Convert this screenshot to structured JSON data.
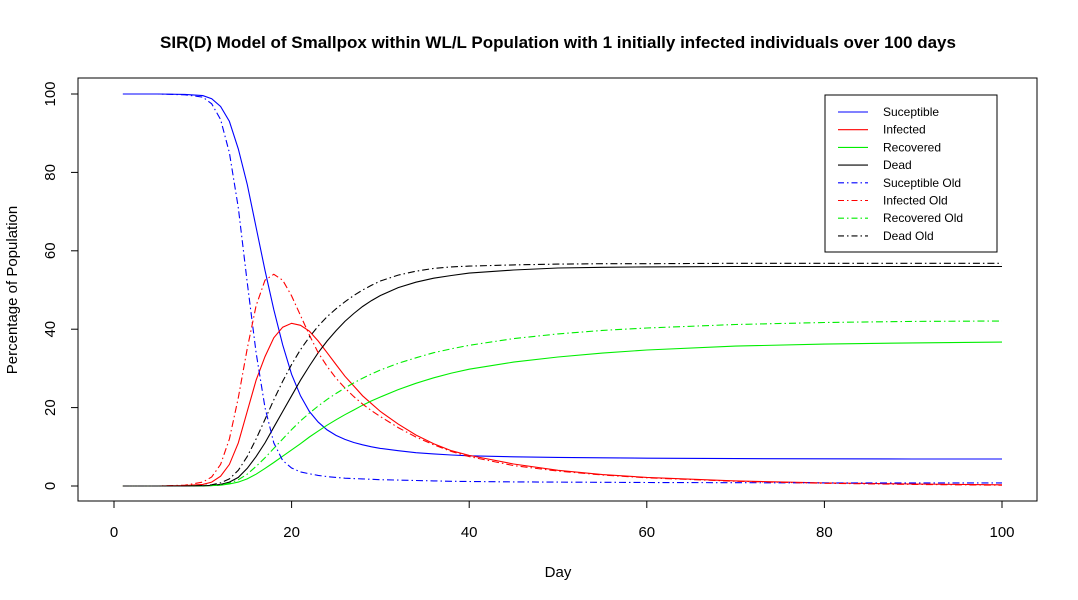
{
  "chart_data": {
    "type": "line",
    "title": "SIR(D) Model of Smallpox within WL/L Population with 1 initially infected individuals over 100 days",
    "xlabel": "Day",
    "ylabel": "Percentage of Population",
    "xlim": [
      1,
      100
    ],
    "ylim": [
      0,
      100
    ],
    "xticks": [
      0,
      20,
      40,
      60,
      80,
      100
    ],
    "yticks": [
      0,
      20,
      40,
      60,
      80,
      100
    ],
    "grid": false,
    "legend_position": "top-right",
    "x": [
      1,
      5,
      8,
      10,
      11,
      12,
      13,
      14,
      15,
      16,
      17,
      18,
      19,
      20,
      21,
      22,
      23,
      24,
      25,
      26,
      27,
      28,
      29,
      30,
      32,
      34,
      36,
      38,
      40,
      45,
      50,
      55,
      60,
      70,
      80,
      90,
      100
    ],
    "series": [
      {
        "name": "Suceptible",
        "color": "#0000ff",
        "dash": "solid",
        "values": [
          100,
          100,
          99.9,
          99.6,
          98.8,
          96.8,
          93,
          86,
          77,
          66,
          55,
          45,
          36,
          28.5,
          23,
          19,
          16.3,
          14.3,
          12.9,
          11.9,
          11.1,
          10.5,
          10,
          9.6,
          9,
          8.5,
          8.2,
          7.9,
          7.7,
          7.45,
          7.3,
          7.2,
          7.1,
          7,
          6.95,
          6.9,
          6.9
        ]
      },
      {
        "name": "Infected",
        "color": "#ff0000",
        "dash": "solid",
        "values": [
          0,
          0,
          0.1,
          0.4,
          1,
          2.5,
          5.5,
          11,
          19,
          27,
          33,
          37.8,
          40.5,
          41.5,
          41,
          39.5,
          37,
          34,
          31,
          28,
          25.5,
          23,
          21,
          19,
          15.8,
          13,
          10.8,
          9,
          7.8,
          5.6,
          4,
          2.9,
          2.2,
          1.3,
          0.8,
          0.5,
          0.3
        ]
      },
      {
        "name": "Recovered",
        "color": "#00ee00",
        "dash": "solid",
        "values": [
          0,
          0,
          0,
          0.05,
          0.1,
          0.2,
          0.5,
          1,
          1.8,
          3,
          4.5,
          6,
          7.6,
          9.2,
          10.8,
          12.5,
          14,
          15.5,
          16.9,
          18.2,
          19.4,
          20.6,
          21.7,
          22.7,
          24.6,
          26.2,
          27.6,
          28.8,
          29.8,
          31.6,
          32.9,
          33.9,
          34.7,
          35.7,
          36.2,
          36.5,
          36.7
        ]
      },
      {
        "name": "Dead",
        "color": "#000000",
        "dash": "solid",
        "values": [
          0,
          0,
          0,
          0.05,
          0.15,
          0.4,
          1,
          2.2,
          4.5,
          7.5,
          11,
          15,
          19,
          23,
          27,
          30.6,
          34,
          37,
          39.6,
          42,
          44,
          45.8,
          47.3,
          48.6,
          50.6,
          52,
          53,
          53.7,
          54.3,
          55.1,
          55.6,
          55.8,
          55.9,
          56,
          56,
          56,
          56
        ]
      },
      {
        "name": "Suceptible Old",
        "color": "#0000ff",
        "dash": "dashdot",
        "values": [
          100,
          100,
          99.8,
          99.2,
          97.5,
          93.5,
          85,
          71,
          52,
          34,
          20,
          11,
          6.5,
          4.6,
          3.6,
          3.1,
          2.7,
          2.4,
          2.2,
          2,
          1.9,
          1.8,
          1.7,
          1.6,
          1.5,
          1.4,
          1.3,
          1.2,
          1.15,
          1.05,
          1,
          0.95,
          0.9,
          0.85,
          0.8,
          0.8,
          0.8
        ]
      },
      {
        "name": "Infected Old",
        "color": "#ff0000",
        "dash": "dashdot",
        "values": [
          0,
          0,
          0.2,
          1,
          2.3,
          5.5,
          12,
          22.5,
          35,
          46,
          52.5,
          54,
          52.5,
          48.5,
          43.5,
          38.5,
          34,
          30.5,
          27.5,
          25,
          22.8,
          20.9,
          19.2,
          17.7,
          14.9,
          12.5,
          10.5,
          8.8,
          7.5,
          5.2,
          3.8,
          2.8,
          2.1,
          1.2,
          0.7,
          0.4,
          0.2
        ]
      },
      {
        "name": "Recovered Old",
        "color": "#00ee00",
        "dash": "dashdot",
        "values": [
          0,
          0,
          0,
          0.05,
          0.1,
          0.3,
          0.7,
          1.6,
          3,
          5,
          7.2,
          9.6,
          12,
          14.4,
          16.6,
          18.6,
          20.4,
          22.1,
          23.6,
          25,
          26.3,
          27.5,
          28.6,
          29.6,
          31.3,
          32.7,
          34,
          35,
          35.9,
          37.6,
          38.8,
          39.7,
          40.3,
          41.2,
          41.7,
          42,
          42.1
        ]
      },
      {
        "name": "Dead Old",
        "color": "#000000",
        "dash": "dashdot",
        "values": [
          0,
          0,
          0,
          0.1,
          0.3,
          0.8,
          1.8,
          4,
          7.5,
          12,
          17,
          22,
          26.7,
          31,
          34.8,
          38,
          40.8,
          43.2,
          45.2,
          47,
          48.6,
          50,
          51.2,
          52.3,
          53.8,
          54.8,
          55.5,
          55.9,
          56.1,
          56.4,
          56.6,
          56.7,
          56.7,
          56.8,
          56.8,
          56.8,
          56.8
        ]
      }
    ]
  }
}
